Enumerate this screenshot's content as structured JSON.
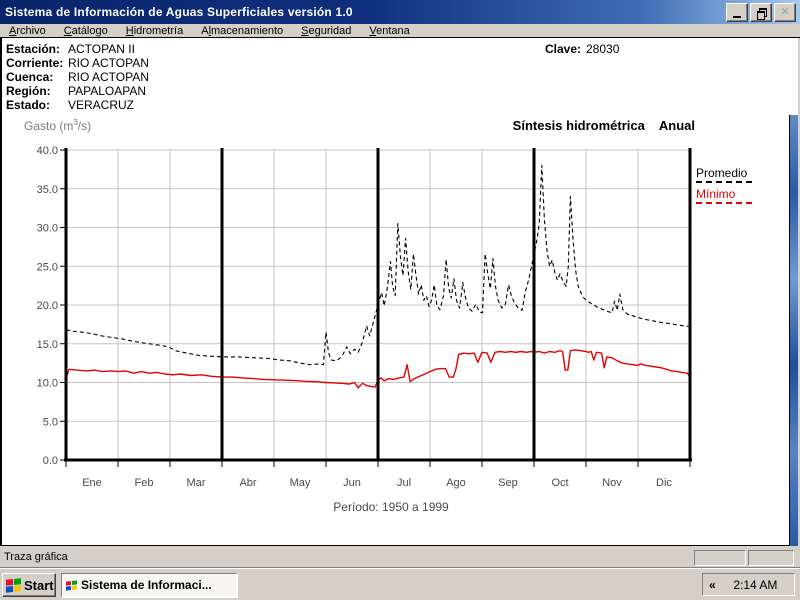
{
  "window": {
    "title": "Sistema de Información de Aguas Superficiales  versión 1.0"
  },
  "menu": {
    "items": [
      {
        "label": "Archivo",
        "underline": 0
      },
      {
        "label": "Catálogo",
        "underline": 0
      },
      {
        "label": "Hidrometría",
        "underline": 0
      },
      {
        "label": "Almacenamiento",
        "underline": 1
      },
      {
        "label": "Seguridad",
        "underline": 0
      },
      {
        "label": "Ventana",
        "underline": 0
      }
    ]
  },
  "header": {
    "fields": [
      {
        "label": "Estación:",
        "value": "ACTOPAN II"
      },
      {
        "label": "Corriente:",
        "value": "RIO ACTOPAN"
      },
      {
        "label": "Cuenca:",
        "value": "RIO ACTOPAN"
      },
      {
        "label": "Región:",
        "value": "PAPALOAPAN"
      },
      {
        "label": "Estado:",
        "value": "VERACRUZ"
      }
    ],
    "clave": {
      "label": "Clave:",
      "value": "28030"
    }
  },
  "chart": {
    "ylabel": {
      "pre": "Gasto (m",
      "sup": "3",
      "post": "/s)"
    },
    "title_main": "Síntesis hidrométrica",
    "title_sub": "Anual",
    "period": "Período:  1950 a 1999"
  },
  "chart_data": {
    "type": "line",
    "title": "Síntesis hidrométrica Anual",
    "ylabel": "Gasto (m³/s)",
    "ylim": [
      0,
      40
    ],
    "ytick_step": 5,
    "grid": true,
    "legend_position": "right-outside",
    "categories": [
      "Ene",
      "Feb",
      "Mar",
      "Abr",
      "May",
      "Jun",
      "Jul",
      "Ago",
      "Sep",
      "Oct",
      "Nov",
      "Dic"
    ],
    "x_unit": "month fraction 0-12",
    "quarter_divider_months": [
      0,
      3,
      6,
      9,
      12
    ],
    "period_note": "Período: 1950 a 1999",
    "series": [
      {
        "name": "Promedio",
        "color": "#000000",
        "style": "dashed",
        "points": [
          [
            0,
            16.8
          ],
          [
            0.15,
            16.6
          ],
          [
            0.3,
            16.5
          ],
          [
            0.5,
            16.3
          ],
          [
            0.7,
            16.0
          ],
          [
            0.9,
            15.8
          ],
          [
            1.1,
            15.6
          ],
          [
            1.3,
            15.3
          ],
          [
            1.5,
            15.1
          ],
          [
            1.7,
            14.9
          ],
          [
            1.9,
            14.7
          ],
          [
            2.0,
            14.5
          ],
          [
            2.1,
            14.1
          ],
          [
            2.25,
            13.9
          ],
          [
            2.4,
            13.7
          ],
          [
            2.55,
            13.5
          ],
          [
            2.75,
            13.4
          ],
          [
            3.0,
            13.3
          ],
          [
            3.3,
            13.3
          ],
          [
            3.6,
            13.2
          ],
          [
            3.9,
            13.1
          ],
          [
            4.1,
            12.9
          ],
          [
            4.3,
            12.8
          ],
          [
            4.5,
            12.5
          ],
          [
            4.7,
            12.3
          ],
          [
            4.85,
            12.4
          ],
          [
            4.95,
            12.3
          ],
          [
            5.0,
            16.5
          ],
          [
            5.05,
            13.8
          ],
          [
            5.1,
            12.9
          ],
          [
            5.2,
            12.8
          ],
          [
            5.3,
            13.3
          ],
          [
            5.4,
            14.6
          ],
          [
            5.47,
            13.7
          ],
          [
            5.55,
            14.3
          ],
          [
            5.62,
            13.9
          ],
          [
            5.7,
            15.2
          ],
          [
            5.78,
            17.3
          ],
          [
            5.84,
            16.0
          ],
          [
            5.9,
            17.5
          ],
          [
            5.96,
            19.0
          ],
          [
            6.02,
            20.5
          ],
          [
            6.07,
            21.6
          ],
          [
            6.12,
            19.9
          ],
          [
            6.18,
            22.3
          ],
          [
            6.24,
            25.6
          ],
          [
            6.28,
            22.4
          ],
          [
            6.33,
            21.2
          ],
          [
            6.38,
            30.5
          ],
          [
            6.43,
            26.3
          ],
          [
            6.48,
            23.8
          ],
          [
            6.53,
            28.6
          ],
          [
            6.58,
            24.3
          ],
          [
            6.63,
            22.0
          ],
          [
            6.68,
            26.6
          ],
          [
            6.73,
            23.8
          ],
          [
            6.78,
            21.4
          ],
          [
            6.83,
            22.6
          ],
          [
            6.88,
            20.6
          ],
          [
            6.93,
            21.2
          ],
          [
            6.98,
            19.8
          ],
          [
            7.03,
            20.6
          ],
          [
            7.08,
            22.6
          ],
          [
            7.13,
            20.0
          ],
          [
            7.19,
            19.4
          ],
          [
            7.26,
            21.2
          ],
          [
            7.31,
            25.9
          ],
          [
            7.36,
            22.2
          ],
          [
            7.41,
            20.9
          ],
          [
            7.46,
            23.4
          ],
          [
            7.51,
            20.6
          ],
          [
            7.57,
            19.6
          ],
          [
            7.63,
            22.9
          ],
          [
            7.68,
            21.0
          ],
          [
            7.74,
            19.6
          ],
          [
            7.81,
            19.2
          ],
          [
            7.88,
            20.1
          ],
          [
            7.95,
            19.1
          ],
          [
            8.01,
            19.0
          ],
          [
            8.06,
            26.6
          ],
          [
            8.11,
            24.1
          ],
          [
            8.16,
            22.1
          ],
          [
            8.21,
            26.0
          ],
          [
            8.26,
            22.4
          ],
          [
            8.31,
            20.6
          ],
          [
            8.38,
            19.6
          ],
          [
            8.45,
            20.1
          ],
          [
            8.51,
            22.6
          ],
          [
            8.57,
            21.1
          ],
          [
            8.63,
            20.2
          ],
          [
            8.7,
            19.6
          ],
          [
            8.77,
            19.3
          ],
          [
            8.83,
            21.6
          ],
          [
            8.89,
            23.1
          ],
          [
            8.95,
            24.9
          ],
          [
            9.0,
            26.5
          ],
          [
            9.06,
            28.5
          ],
          [
            9.1,
            30.5
          ],
          [
            9.15,
            38.0
          ],
          [
            9.2,
            31.0
          ],
          [
            9.25,
            27.0
          ],
          [
            9.3,
            25.0
          ],
          [
            9.35,
            25.8
          ],
          [
            9.4,
            24.2
          ],
          [
            9.45,
            23.2
          ],
          [
            9.5,
            24.0
          ],
          [
            9.56,
            23.0
          ],
          [
            9.62,
            22.4
          ],
          [
            9.66,
            25.0
          ],
          [
            9.7,
            34.0
          ],
          [
            9.75,
            28.5
          ],
          [
            9.8,
            24.5
          ],
          [
            9.85,
            22.4
          ],
          [
            9.9,
            21.6
          ],
          [
            9.95,
            21.0
          ],
          [
            10.0,
            20.6
          ],
          [
            10.1,
            20.2
          ],
          [
            10.2,
            19.8
          ],
          [
            10.3,
            19.5
          ],
          [
            10.4,
            19.2
          ],
          [
            10.5,
            19.0
          ],
          [
            10.55,
            20.5
          ],
          [
            10.6,
            19.3
          ],
          [
            10.65,
            21.4
          ],
          [
            10.71,
            19.4
          ],
          [
            10.8,
            18.8
          ],
          [
            10.9,
            18.6
          ],
          [
            11.0,
            18.4
          ],
          [
            11.1,
            18.2
          ],
          [
            11.25,
            18.0
          ],
          [
            11.4,
            17.8
          ],
          [
            11.6,
            17.6
          ],
          [
            11.8,
            17.4
          ],
          [
            12.0,
            17.2
          ]
        ]
      },
      {
        "name": "Mínimo",
        "color": "#e60000",
        "style": "solid",
        "points": [
          [
            0,
            10.5
          ],
          [
            0.06,
            11.7
          ],
          [
            0.2,
            11.6
          ],
          [
            0.4,
            11.5
          ],
          [
            0.55,
            11.6
          ],
          [
            0.7,
            11.4
          ],
          [
            0.85,
            11.5
          ],
          [
            1.0,
            11.4
          ],
          [
            1.15,
            11.5
          ],
          [
            1.3,
            11.2
          ],
          [
            1.45,
            11.4
          ],
          [
            1.6,
            11.2
          ],
          [
            1.75,
            11.3
          ],
          [
            1.9,
            11.1
          ],
          [
            2.05,
            11.0
          ],
          [
            2.2,
            11.1
          ],
          [
            2.4,
            10.9
          ],
          [
            2.6,
            11.0
          ],
          [
            2.8,
            10.8
          ],
          [
            3.0,
            10.7
          ],
          [
            3.2,
            10.7
          ],
          [
            3.4,
            10.6
          ],
          [
            3.6,
            10.5
          ],
          [
            3.8,
            10.4
          ],
          [
            4.0,
            10.35
          ],
          [
            4.2,
            10.3
          ],
          [
            4.4,
            10.25
          ],
          [
            4.6,
            10.15
          ],
          [
            4.8,
            10.1
          ],
          [
            5.0,
            10.0
          ],
          [
            5.15,
            9.95
          ],
          [
            5.3,
            9.9
          ],
          [
            5.45,
            9.8
          ],
          [
            5.55,
            10.0
          ],
          [
            5.62,
            9.3
          ],
          [
            5.7,
            9.9
          ],
          [
            5.78,
            9.6
          ],
          [
            5.86,
            9.5
          ],
          [
            5.94,
            9.4
          ],
          [
            6.0,
            10.3
          ],
          [
            6.06,
            10.6
          ],
          [
            6.12,
            10.2
          ],
          [
            6.2,
            10.5
          ],
          [
            6.3,
            10.4
          ],
          [
            6.4,
            10.6
          ],
          [
            6.5,
            10.7
          ],
          [
            6.56,
            12.3
          ],
          [
            6.62,
            10.1
          ],
          [
            6.7,
            10.5
          ],
          [
            6.8,
            10.8
          ],
          [
            6.9,
            11.1
          ],
          [
            7.0,
            11.4
          ],
          [
            7.1,
            11.7
          ],
          [
            7.2,
            11.8
          ],
          [
            7.3,
            11.8
          ],
          [
            7.37,
            10.7
          ],
          [
            7.45,
            10.7
          ],
          [
            7.5,
            11.8
          ],
          [
            7.55,
            13.6
          ],
          [
            7.65,
            13.8
          ],
          [
            7.75,
            13.7
          ],
          [
            7.85,
            13.8
          ],
          [
            7.92,
            12.6
          ],
          [
            8.0,
            13.9
          ],
          [
            8.1,
            13.8
          ],
          [
            8.17,
            12.6
          ],
          [
            8.25,
            13.9
          ],
          [
            8.35,
            14.0
          ],
          [
            8.45,
            13.9
          ],
          [
            8.55,
            14.0
          ],
          [
            8.65,
            13.9
          ],
          [
            8.75,
            14.0
          ],
          [
            8.85,
            13.9
          ],
          [
            8.95,
            14.0
          ],
          [
            9.0,
            13.9
          ],
          [
            9.1,
            14.0
          ],
          [
            9.2,
            13.8
          ],
          [
            9.3,
            14.0
          ],
          [
            9.4,
            13.9
          ],
          [
            9.5,
            14.1
          ],
          [
            9.55,
            14.0
          ],
          [
            9.6,
            11.6
          ],
          [
            9.65,
            11.6
          ],
          [
            9.7,
            14.1
          ],
          [
            9.8,
            14.2
          ],
          [
            9.9,
            14.1
          ],
          [
            10.0,
            14.0
          ],
          [
            10.05,
            13.9
          ],
          [
            10.1,
            14.0
          ],
          [
            10.15,
            12.9
          ],
          [
            10.2,
            13.9
          ],
          [
            10.3,
            13.8
          ],
          [
            10.35,
            11.9
          ],
          [
            10.4,
            13.3
          ],
          [
            10.5,
            13.2
          ],
          [
            10.6,
            12.8
          ],
          [
            10.7,
            12.5
          ],
          [
            10.8,
            12.4
          ],
          [
            10.9,
            12.3
          ],
          [
            11.0,
            12.2
          ],
          [
            11.05,
            12.4
          ],
          [
            11.15,
            12.2
          ],
          [
            11.25,
            12.1
          ],
          [
            11.35,
            12.0
          ],
          [
            11.45,
            11.9
          ],
          [
            11.55,
            11.7
          ],
          [
            11.65,
            11.5
          ],
          [
            11.75,
            11.4
          ],
          [
            11.85,
            11.3
          ],
          [
            11.95,
            11.2
          ],
          [
            12.0,
            10.7
          ]
        ]
      }
    ]
  },
  "statusbar": {
    "text": "Traza gráfica"
  },
  "taskbar": {
    "start_label": "Start",
    "task_label": "Sistema de Informaci...",
    "tray_collapse": "«",
    "clock": "2:14 AM"
  }
}
